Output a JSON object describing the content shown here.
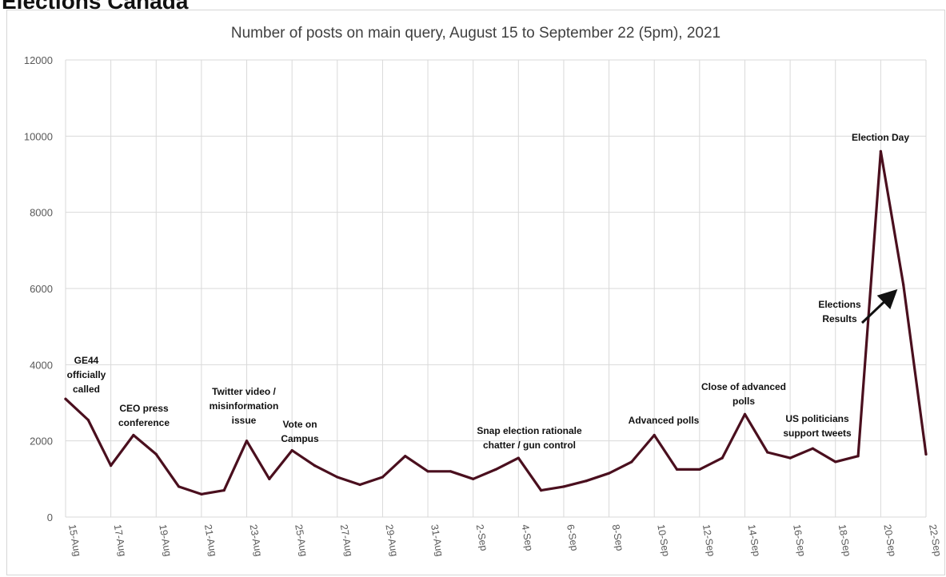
{
  "header": {
    "title": "Elections Canada"
  },
  "chart_data": {
    "type": "line",
    "title": "Number of posts on main query, August 15 to September 22 (5pm), 2021",
    "xlabel": "",
    "ylabel": "",
    "ylim": [
      0,
      12000
    ],
    "y_ticks": [
      "0",
      "2000",
      "4000",
      "6000",
      "8000",
      "10000",
      "12000"
    ],
    "grid": true,
    "line_color": "#4a0f1e",
    "x": [
      "15-Aug",
      "16-Aug",
      "17-Aug",
      "18-Aug",
      "19-Aug",
      "20-Aug",
      "21-Aug",
      "22-Aug",
      "23-Aug",
      "24-Aug",
      "25-Aug",
      "26-Aug",
      "27-Aug",
      "28-Aug",
      "29-Aug",
      "30-Aug",
      "31-Aug",
      "1-Sep",
      "2-Sep",
      "3-Sep",
      "4-Sep",
      "5-Sep",
      "6-Sep",
      "7-Sep",
      "8-Sep",
      "9-Sep",
      "10-Sep",
      "11-Sep",
      "12-Sep",
      "13-Sep",
      "14-Sep",
      "15-Sep",
      "16-Sep",
      "17-Sep",
      "18-Sep",
      "19-Sep",
      "20-Sep",
      "21-Sep",
      "22-Sep"
    ],
    "x_tick_labels": [
      "15-Aug",
      "17-Aug",
      "19-Aug",
      "21-Aug",
      "23-Aug",
      "25-Aug",
      "27-Aug",
      "29-Aug",
      "31-Aug",
      "2-Sep",
      "4-Sep",
      "6-Sep",
      "8-Sep",
      "10-Sep",
      "12-Sep",
      "14-Sep",
      "16-Sep",
      "18-Sep",
      "20-Sep",
      "22-Sep"
    ],
    "series": [
      {
        "values": [
          3100,
          2550,
          1350,
          2150,
          1650,
          800,
          600,
          700,
          2000,
          1000,
          1750,
          1350,
          1050,
          850,
          1050,
          1600,
          1200,
          1200,
          1000,
          1250,
          1550,
          700,
          800,
          950,
          1150,
          1450,
          2150,
          1250,
          1250,
          1550,
          2700,
          1700,
          1550,
          1800,
          1450,
          1600,
          9600,
          6100,
          1650
        ]
      }
    ],
    "annotations": [
      {
        "lines": [
          "GE44",
          "officially",
          "called"
        ],
        "index": 0
      },
      {
        "lines": [
          "CEO press",
          "conference"
        ],
        "index": 3
      },
      {
        "lines": [
          "Twitter video /",
          "misinformation",
          "issue"
        ],
        "index": 8
      },
      {
        "lines": [
          "Vote on",
          "Campus"
        ],
        "index": 10
      },
      {
        "lines": [
          "Snap election rationale",
          "chatter / gun control"
        ],
        "index": 20
      },
      {
        "lines": [
          "Advanced  polls"
        ],
        "index": 26
      },
      {
        "lines": [
          "Close  of advanced",
          "polls"
        ],
        "index": 30
      },
      {
        "lines": [
          "US politicians",
          "support tweets"
        ],
        "index": 34
      },
      {
        "lines": [
          "Election Day"
        ],
        "index": 36
      },
      {
        "lines": [
          "Elections",
          "Results"
        ],
        "index": 37
      }
    ]
  }
}
